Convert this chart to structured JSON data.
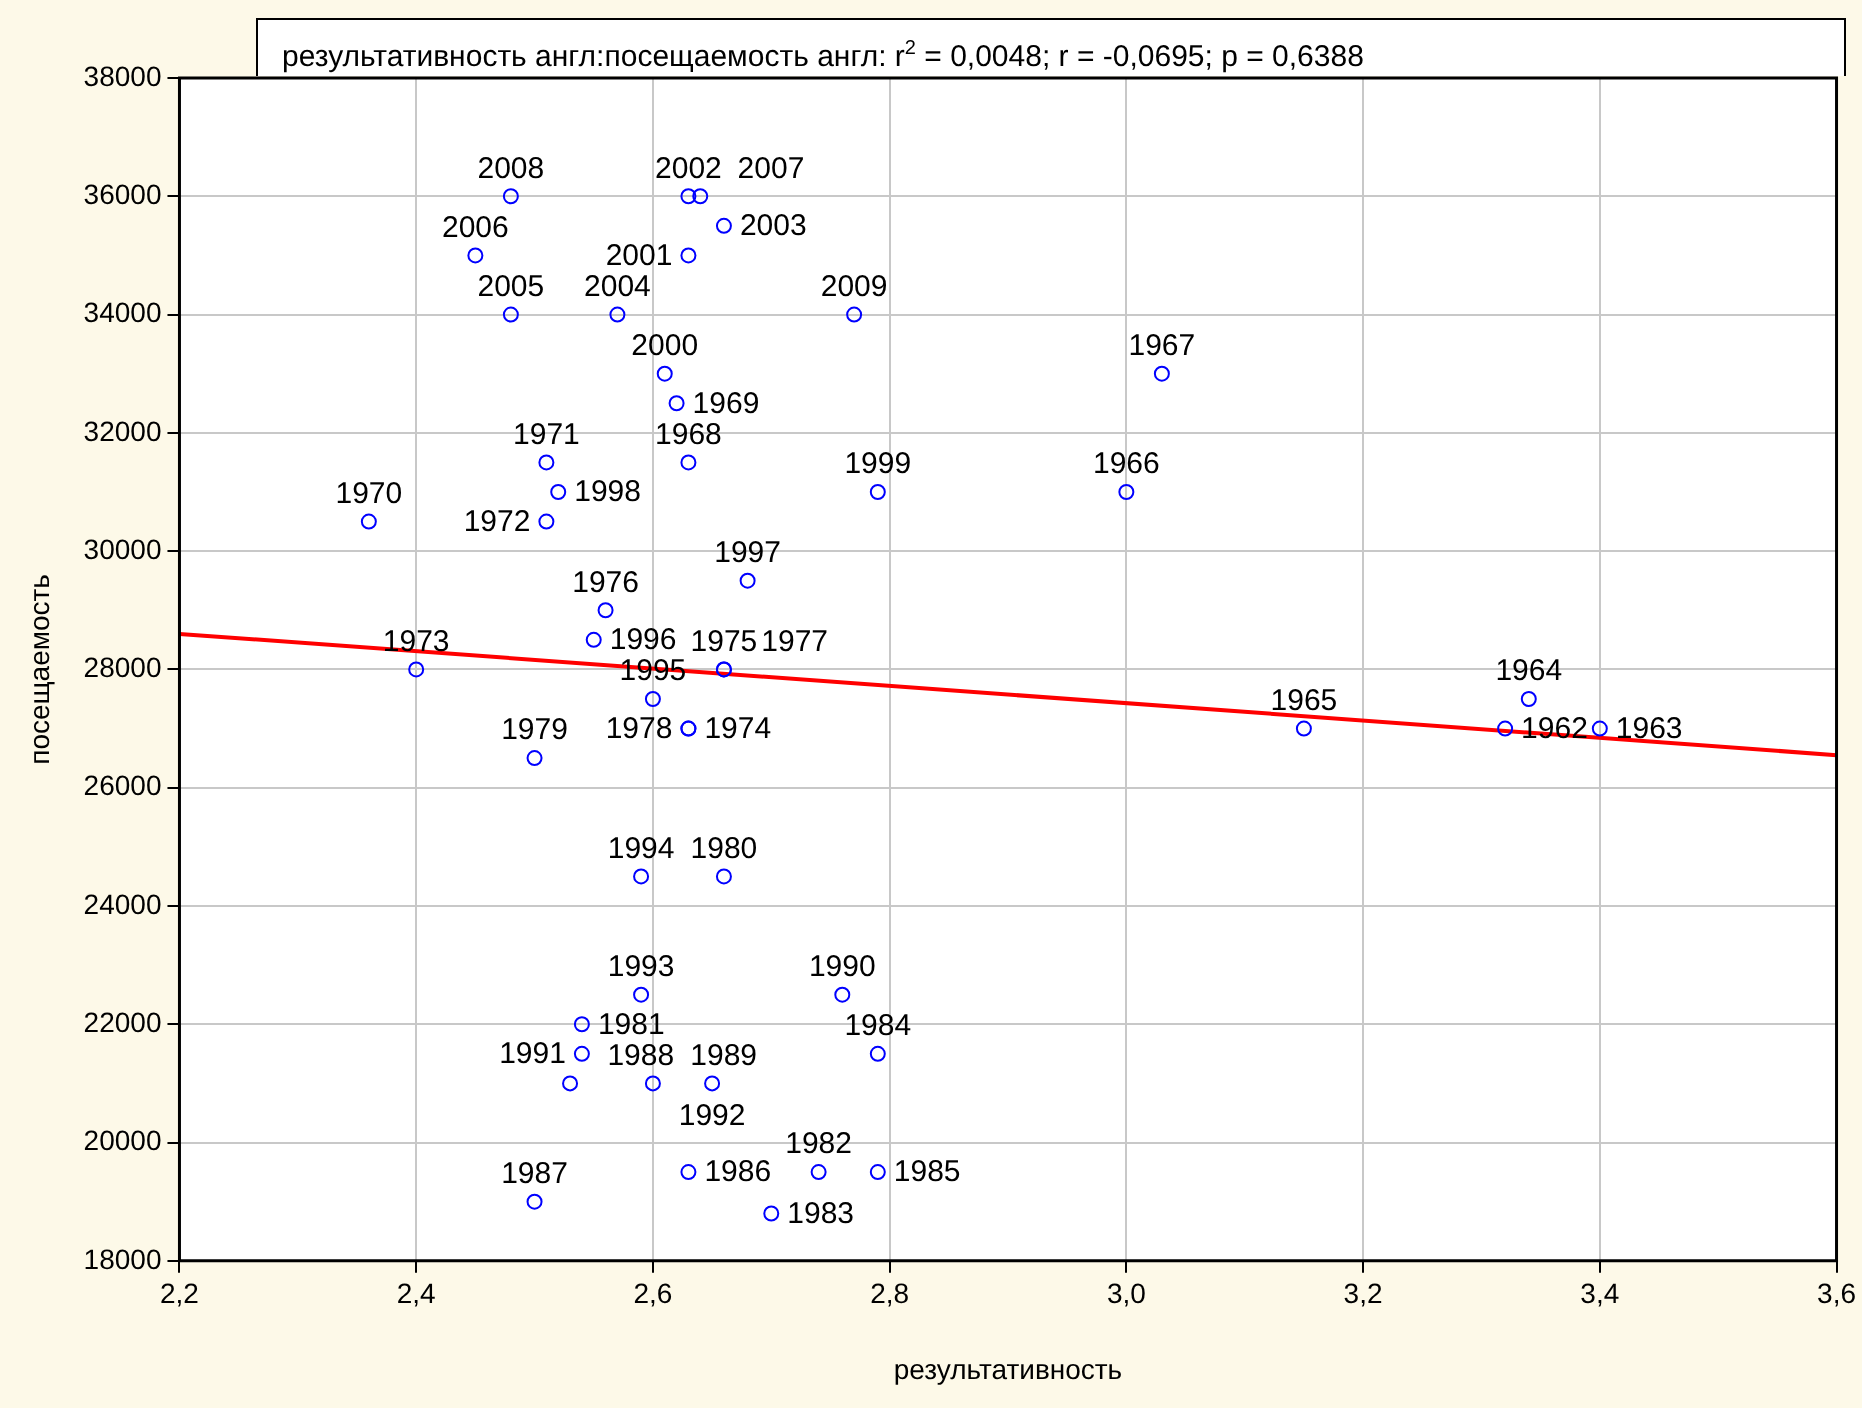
{
  "chart_data": {
    "type": "scatter",
    "title": "результативность англ:посещаемость англ:  r$^{2}$ = 0,0048;  r = -0,0695; p = 0,6388",
    "xlabel": "результативность",
    "ylabel": "посещаемость",
    "xlim": [
      2.2,
      3.6
    ],
    "xticks": [
      {
        "value": 2.2,
        "label": "2,2"
      },
      {
        "value": 2.4,
        "label": "2,4"
      },
      {
        "value": 2.6,
        "label": "2,6"
      },
      {
        "value": 2.8,
        "label": "2,8"
      },
      {
        "value": 3.0,
        "label": "3,0"
      },
      {
        "value": 3.2,
        "label": "3,2"
      },
      {
        "value": 3.4,
        "label": "3,4"
      },
      {
        "value": 3.6,
        "label": "3,6"
      }
    ],
    "ylim": [
      18000,
      38000
    ],
    "yticks": [
      18000,
      20000,
      22000,
      24000,
      26000,
      28000,
      30000,
      32000,
      34000,
      36000,
      38000
    ],
    "grid": true,
    "legend": false,
    "series": [
      {
        "color": "#0000ff",
        "marker": "circle",
        "x": [
          2.48,
          2.63,
          2.64,
          2.66,
          2.45,
          2.63,
          2.48,
          2.57,
          2.77,
          2.61,
          2.62,
          2.51,
          2.52,
          2.51,
          2.63,
          2.36,
          2.79,
          2.68,
          2.56,
          2.55,
          2.4,
          2.66,
          2.66,
          2.6,
          2.63,
          2.63,
          2.5,
          2.59,
          2.66,
          2.59,
          2.54,
          2.54,
          2.53,
          2.6,
          2.65,
          2.76,
          2.79,
          2.63,
          2.74,
          2.79,
          2.5,
          2.7,
          3.03,
          3.0,
          3.15,
          3.32,
          3.34,
          3.4
        ],
        "values": [
          36000,
          36000,
          36000,
          35500,
          35000,
          35000,
          34000,
          34000,
          34000,
          33000,
          32500,
          31500,
          31000,
          30500,
          31500,
          30500,
          31000,
          29500,
          29000,
          28500,
          28000,
          28000,
          28000,
          27500,
          27000,
          27000,
          26500,
          24500,
          24500,
          22500,
          22000,
          21500,
          21000,
          21000,
          21000,
          22500,
          21500,
          19500,
          19500,
          19500,
          19000,
          18800,
          33000,
          31000,
          27000,
          27000,
          27500,
          27000
        ]
      },
      {
        "type": "line",
        "color": "#ff0000",
        "marker": "none",
        "x": [
          2.2,
          3.6
        ],
        "values": [
          28600,
          26550
        ]
      }
    ],
    "annotations": [
      {
        "text": "2008",
        "x": 2.48,
        "y": 36000
      },
      {
        "text": "2002",
        "x": 2.63,
        "y": 36000
      },
      {
        "text": "2007",
        "x": 2.64,
        "y": 36000
      },
      {
        "text": "2003",
        "x": 2.66,
        "y": 35500
      },
      {
        "text": "2006",
        "x": 2.45,
        "y": 35000
      },
      {
        "text": "2001",
        "x": 2.63,
        "y": 35000
      },
      {
        "text": "2005",
        "x": 2.48,
        "y": 34000
      },
      {
        "text": "2004",
        "x": 2.57,
        "y": 34000
      },
      {
        "text": "2009",
        "x": 2.77,
        "y": 34000
      },
      {
        "text": "2000",
        "x": 2.61,
        "y": 33000
      },
      {
        "text": "1969",
        "x": 2.62,
        "y": 32500
      },
      {
        "text": "1971",
        "x": 2.51,
        "y": 31500
      },
      {
        "text": "1998",
        "x": 2.52,
        "y": 31000
      },
      {
        "text": "1972",
        "x": 2.51,
        "y": 30500
      },
      {
        "text": "1968",
        "x": 2.63,
        "y": 31500
      },
      {
        "text": "1970",
        "x": 2.36,
        "y": 30500
      },
      {
        "text": "1999",
        "x": 2.79,
        "y": 31000
      },
      {
        "text": "1997",
        "x": 2.68,
        "y": 29500
      },
      {
        "text": "1976",
        "x": 2.56,
        "y": 29000
      },
      {
        "text": "1996",
        "x": 2.55,
        "y": 28500
      },
      {
        "text": "1973",
        "x": 2.4,
        "y": 28000
      },
      {
        "text": "1975",
        "x": 2.66,
        "y": 28000
      },
      {
        "text": "1977",
        "x": 2.66,
        "y": 28000
      },
      {
        "text": "1995",
        "x": 2.6,
        "y": 27500
      },
      {
        "text": "1974",
        "x": 2.63,
        "y": 27000
      },
      {
        "text": "1978",
        "x": 2.63,
        "y": 27000
      },
      {
        "text": "1979",
        "x": 2.5,
        "y": 26500
      },
      {
        "text": "1994",
        "x": 2.59,
        "y": 24500
      },
      {
        "text": "1980",
        "x": 2.66,
        "y": 24500
      },
      {
        "text": "1993",
        "x": 2.59,
        "y": 22500
      },
      {
        "text": "1981",
        "x": 2.54,
        "y": 22000
      },
      {
        "text": "1991",
        "x": 2.54,
        "y": 21500
      },
      {
        "text": "1988",
        "x": 2.53,
        "y": 21000
      },
      {
        "text": "1989",
        "x": 2.6,
        "y": 21000
      },
      {
        "text": "1992",
        "x": 2.65,
        "y": 21000
      },
      {
        "text": "1990",
        "x": 2.76,
        "y": 22500
      },
      {
        "text": "1984",
        "x": 2.79,
        "y": 21500
      },
      {
        "text": "1986",
        "x": 2.63,
        "y": 19500
      },
      {
        "text": "1982",
        "x": 2.74,
        "y": 19500
      },
      {
        "text": "1985",
        "x": 2.79,
        "y": 19500
      },
      {
        "text": "1987",
        "x": 2.5,
        "y": 19000
      },
      {
        "text": "1983",
        "x": 2.7,
        "y": 18800
      },
      {
        "text": "1967",
        "x": 3.03,
        "y": 33000
      },
      {
        "text": "1966",
        "x": 3.0,
        "y": 31000
      },
      {
        "text": "1965",
        "x": 3.15,
        "y": 27000
      },
      {
        "text": "1962",
        "x": 3.32,
        "y": 27000
      },
      {
        "text": "1964",
        "x": 3.34,
        "y": 27500
      },
      {
        "text": "1963",
        "x": 3.4,
        "y": 27000
      }
    ]
  }
}
